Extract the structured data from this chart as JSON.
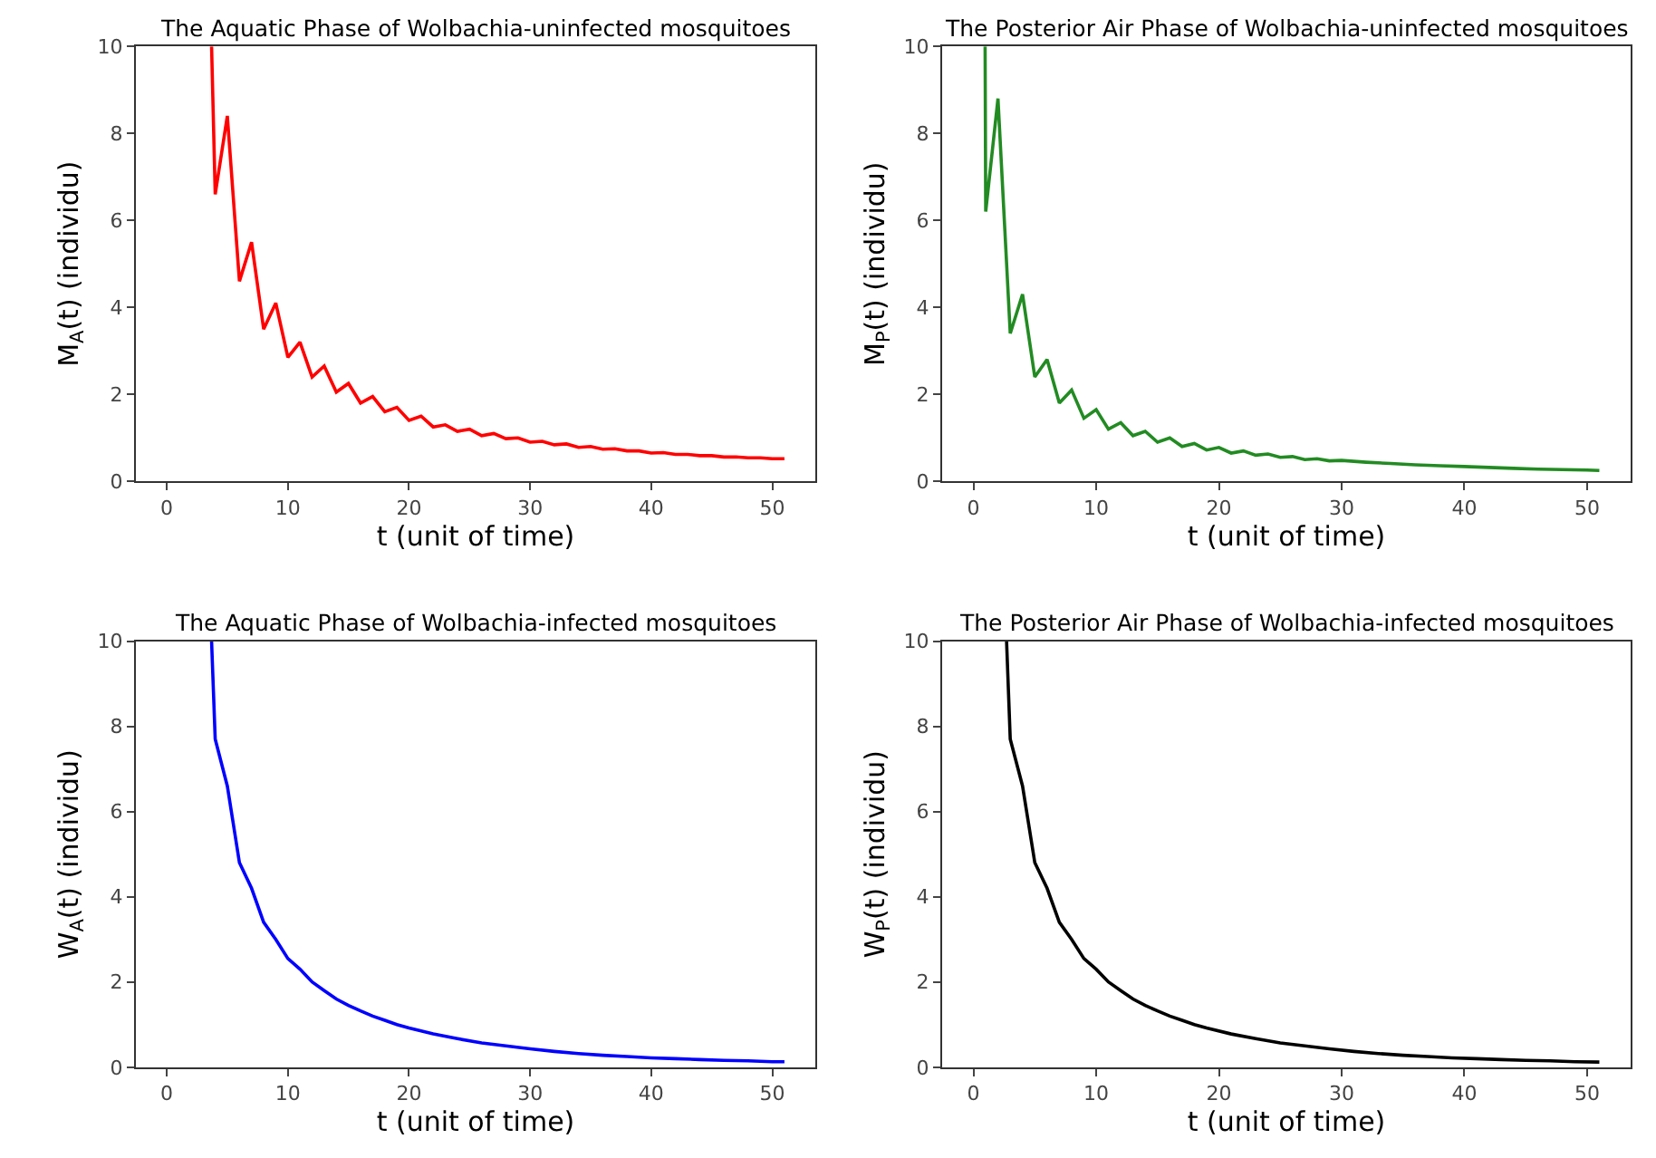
{
  "chart_data": [
    {
      "type": "line",
      "title": "The Aquatic Phase of Wolbachia-uninfected mosquitoes",
      "xlabel": "t (unit of time)",
      "ylabel": "M$_{A}$(t) (individu)",
      "xlim": [
        -2.55,
        53.55
      ],
      "xticks": [
        0,
        10,
        20,
        30,
        40,
        50
      ],
      "ylim": [
        0,
        10
      ],
      "yticks": [
        0,
        2,
        4,
        6,
        8,
        10
      ],
      "series": [
        {
          "color": "#ff0000",
          "x": [
            3.7,
            4,
            5,
            6,
            7,
            8,
            9,
            10,
            11,
            12,
            13,
            14,
            15,
            16,
            17,
            18,
            19,
            20,
            21,
            22,
            23,
            24,
            25,
            26,
            27,
            28,
            29,
            30,
            31,
            32,
            33,
            34,
            35,
            36,
            37,
            38,
            39,
            40,
            41,
            42,
            43,
            44,
            45,
            46,
            47,
            48,
            49,
            50,
            51
          ],
          "values": [
            10,
            6.6,
            8.4,
            4.6,
            5.5,
            3.5,
            4.1,
            2.85,
            3.2,
            2.4,
            2.65,
            2.05,
            2.25,
            1.8,
            1.95,
            1.6,
            1.7,
            1.4,
            1.5,
            1.25,
            1.3,
            1.15,
            1.2,
            1.05,
            1.1,
            0.98,
            1.0,
            0.9,
            0.92,
            0.84,
            0.86,
            0.78,
            0.8,
            0.74,
            0.75,
            0.7,
            0.7,
            0.65,
            0.66,
            0.62,
            0.62,
            0.59,
            0.59,
            0.56,
            0.56,
            0.54,
            0.54,
            0.52,
            0.52
          ]
        }
      ]
    },
    {
      "type": "line",
      "title": "The Posterior Air Phase of Wolbachia-uninfected mosquitoes",
      "xlabel": "t (unit of time)",
      "ylabel": "M$_{P}$(t) (individu)",
      "xlim": [
        -2.55,
        53.55
      ],
      "xticks": [
        0,
        10,
        20,
        30,
        40,
        50
      ],
      "ylim": [
        0,
        10
      ],
      "yticks": [
        0,
        2,
        4,
        6,
        8,
        10
      ],
      "series": [
        {
          "color": "#228b22",
          "x": [
            0.95,
            1,
            2,
            3,
            4,
            5,
            6,
            7,
            8,
            9,
            10,
            11,
            12,
            13,
            14,
            15,
            16,
            17,
            18,
            19,
            20,
            21,
            22,
            23,
            24,
            25,
            26,
            27,
            28,
            29,
            30,
            32,
            34,
            36,
            38,
            40,
            42,
            44,
            46,
            48,
            50,
            51
          ],
          "values": [
            10,
            6.2,
            8.8,
            3.4,
            4.3,
            2.4,
            2.8,
            1.8,
            2.1,
            1.45,
            1.65,
            1.2,
            1.35,
            1.05,
            1.15,
            0.9,
            1.0,
            0.8,
            0.87,
            0.72,
            0.78,
            0.65,
            0.7,
            0.6,
            0.63,
            0.55,
            0.57,
            0.5,
            0.52,
            0.47,
            0.48,
            0.44,
            0.41,
            0.38,
            0.36,
            0.34,
            0.32,
            0.3,
            0.28,
            0.27,
            0.26,
            0.25
          ]
        }
      ]
    },
    {
      "type": "line",
      "title": "The Aquatic Phase of Wolbachia-infected mosquitoes",
      "xlabel": "t (unit of time)",
      "ylabel": "W$_{A}$(t) (individu)",
      "xlim": [
        -2.55,
        53.55
      ],
      "xticks": [
        0,
        10,
        20,
        30,
        40,
        50
      ],
      "ylim": [
        0,
        10
      ],
      "yticks": [
        0,
        2,
        4,
        6,
        8,
        10
      ],
      "series": [
        {
          "color": "#0000ff",
          "x": [
            3.7,
            4,
            5,
            6,
            7,
            8,
            9,
            10,
            11,
            12,
            13,
            14,
            15,
            16,
            17,
            18,
            19,
            20,
            22,
            24,
            26,
            28,
            30,
            32,
            34,
            36,
            38,
            40,
            42,
            44,
            46,
            48,
            50,
            51
          ],
          "values": [
            10,
            7.7,
            6.6,
            4.8,
            4.2,
            3.4,
            3.0,
            2.55,
            2.3,
            2.0,
            1.8,
            1.6,
            1.45,
            1.32,
            1.2,
            1.1,
            1.0,
            0.92,
            0.78,
            0.67,
            0.57,
            0.5,
            0.43,
            0.37,
            0.32,
            0.28,
            0.25,
            0.22,
            0.2,
            0.18,
            0.16,
            0.15,
            0.13,
            0.13
          ]
        }
      ]
    },
    {
      "type": "line",
      "title": "The Posterior Air Phase of Wolbachia-infected mosquitoes",
      "xlabel": "t (unit of time)",
      "ylabel": "W$_{P}$(t) (individu)",
      "xlim": [
        -2.55,
        53.55
      ],
      "xticks": [
        0,
        10,
        20,
        30,
        40,
        50
      ],
      "ylim": [
        0,
        10
      ],
      "yticks": [
        0,
        2,
        4,
        6,
        8,
        10
      ],
      "series": [
        {
          "color": "#000000",
          "x": [
            2.7,
            3,
            4,
            5,
            6,
            7,
            8,
            9,
            10,
            11,
            12,
            13,
            14,
            15,
            16,
            17,
            18,
            19,
            21,
            23,
            25,
            27,
            29,
            31,
            33,
            35,
            37,
            39,
            41,
            43,
            45,
            47,
            49,
            51
          ],
          "values": [
            10,
            7.7,
            6.6,
            4.8,
            4.2,
            3.4,
            3.0,
            2.55,
            2.3,
            2.0,
            1.8,
            1.6,
            1.45,
            1.32,
            1.2,
            1.1,
            1.0,
            0.92,
            0.78,
            0.67,
            0.57,
            0.5,
            0.43,
            0.37,
            0.32,
            0.28,
            0.25,
            0.22,
            0.2,
            0.18,
            0.16,
            0.15,
            0.13,
            0.12
          ]
        }
      ]
    }
  ]
}
